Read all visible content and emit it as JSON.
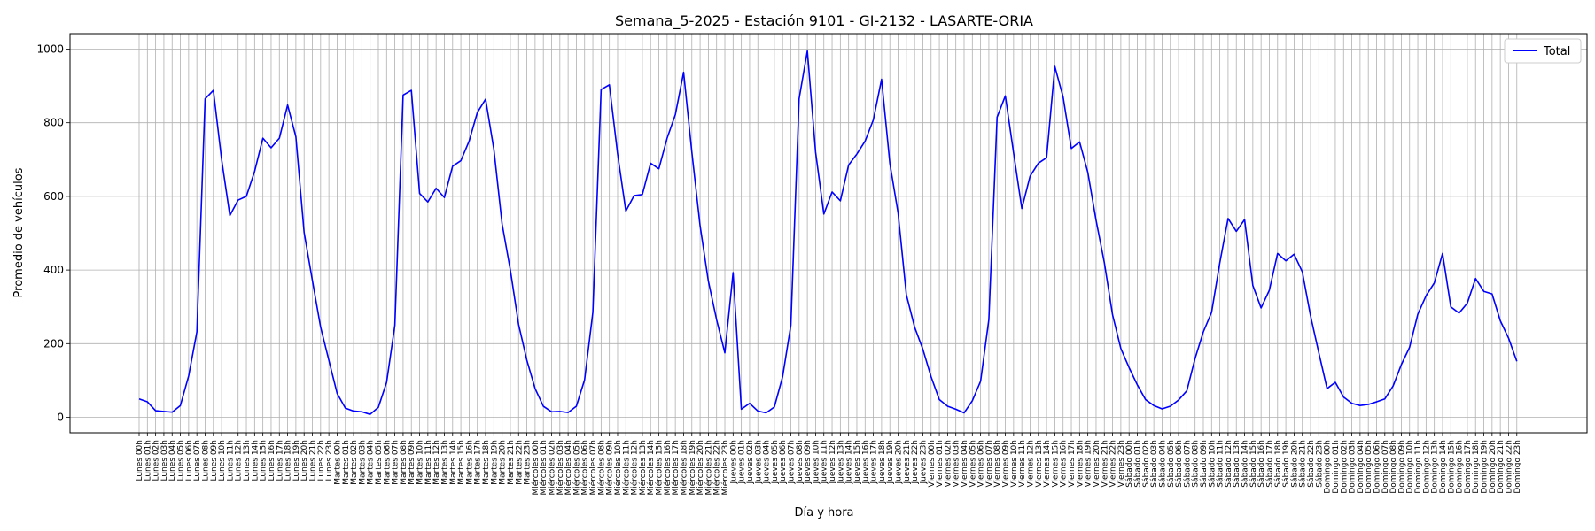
{
  "chart_data": {
    "type": "line",
    "title": "Semana_5-2025 - Estación 9101 - GI-2132  - LASARTE-ORIA",
    "xlabel": "Día y hora",
    "ylabel": "Promedio de vehículos",
    "ylim": [
      -42,
      1042
    ],
    "yticks": [
      0,
      200,
      400,
      600,
      800,
      1000
    ],
    "grid": true,
    "legend_position": "top-right",
    "days": [
      "Lunes",
      "Martes",
      "Miércoles",
      "Jueves",
      "Viernes",
      "Sábado",
      "Domingo"
    ],
    "series": [
      {
        "name": "Total",
        "color": "#0000ff",
        "values": [
          50,
          42,
          18,
          16,
          14,
          32,
          112,
          232,
          865,
          888,
          700,
          548,
          590,
          600,
          668,
          758,
          732,
          758,
          848,
          762,
          502,
          372,
          245,
          155,
          65,
          25,
          17,
          15,
          8,
          27,
          95,
          250,
          875,
          888,
          608,
          585,
          622,
          597,
          682,
          697,
          750,
          828,
          864,
          728,
          525,
          400,
          252,
          155,
          78,
          30,
          15,
          16,
          13,
          30,
          102,
          285,
          890,
          903,
          715,
          560,
          602,
          605,
          690,
          675,
          758,
          822,
          937,
          720,
          520,
          370,
          265,
          175,
          393,
          22,
          38,
          17,
          12,
          28,
          110,
          250,
          865,
          995,
          720,
          552,
          612,
          588,
          685,
          715,
          750,
          808,
          918,
          690,
          555,
          333,
          245,
          185,
          110,
          48,
          30,
          22,
          12,
          45,
          98,
          265,
          815,
          873,
          718,
          567,
          655,
          690,
          705,
          953,
          870,
          730,
          748,
          665,
          535,
          420,
          278,
          187,
          135,
          88,
          48,
          32,
          23,
          30,
          47,
          72,
          160,
          232,
          285,
          420,
          540,
          505,
          537,
          358,
          297,
          345,
          445,
          425,
          443,
          395,
          275,
          175,
          78,
          95,
          55,
          38,
          32,
          35,
          42,
          50,
          85,
          143,
          190,
          280,
          330,
          365,
          445,
          300,
          283,
          310,
          377,
          342,
          335,
          262,
          215,
          152
        ]
      }
    ]
  }
}
